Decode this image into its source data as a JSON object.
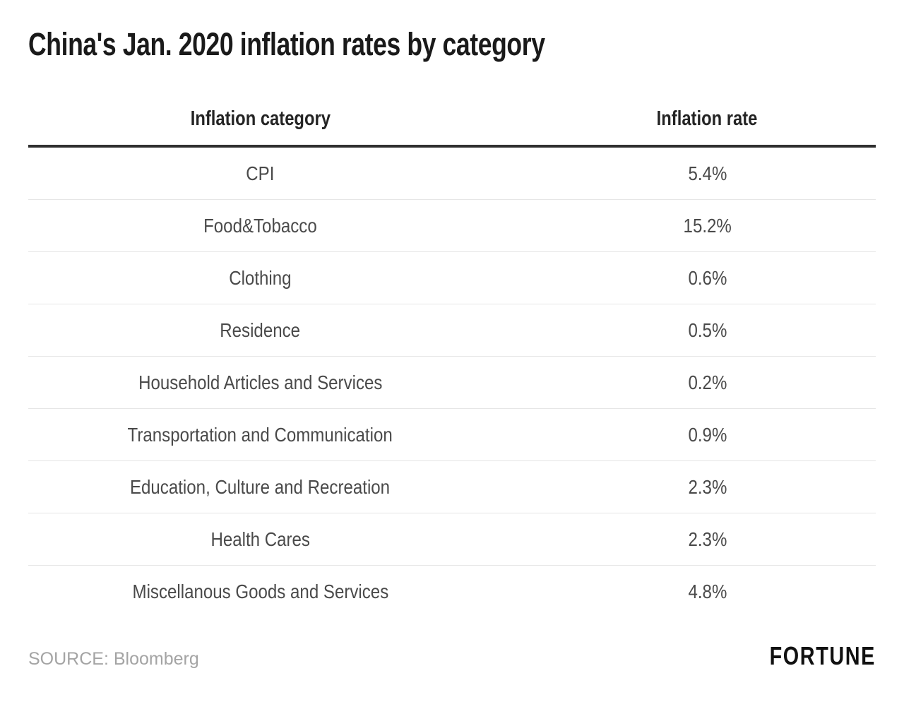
{
  "title": "China's Jan. 2020 inflation rates by category",
  "chart_data": {
    "type": "table",
    "title": "China's Jan. 2020 inflation rates by category",
    "columns": [
      "Inflation category",
      "Inflation rate"
    ],
    "rows": [
      [
        "CPI",
        "5.4%"
      ],
      [
        "Food&Tobacco",
        "15.2%"
      ],
      [
        "Clothing",
        "0.6%"
      ],
      [
        "Residence",
        "0.5%"
      ],
      [
        "Household Articles and Services",
        "0.2%"
      ],
      [
        "Transportation and Communication",
        "0.9%"
      ],
      [
        "Education, Culture and Recreation",
        "2.3%"
      ],
      [
        "Health Cares",
        "2.3%"
      ],
      [
        "Miscellanous Goods and Services",
        "4.8%"
      ]
    ],
    "source": "Bloomberg"
  },
  "footer": {
    "source_label": "SOURCE: Bloomberg",
    "brand": "FORTUNE"
  },
  "colors": {
    "title_text": "#1a1a1a",
    "header_text": "#242424",
    "body_text": "#4a4a4a",
    "thick_rule": "#2f2f2f",
    "separator": "#e6e6e6",
    "source_text": "#a4a4a4",
    "brand_text": "#111111",
    "background": "#ffffff"
  }
}
